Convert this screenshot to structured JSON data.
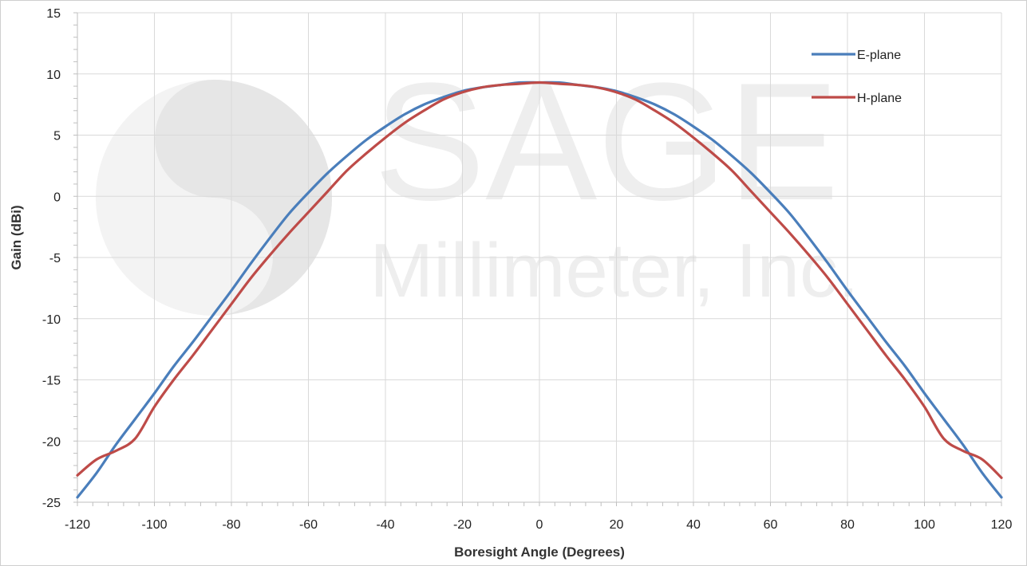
{
  "chart_data": {
    "type": "line",
    "title": "",
    "xlabel": "Boresight Angle (Degrees)",
    "ylabel": "Gain (dBi)",
    "xlim": [
      -120,
      120
    ],
    "ylim": [
      -25,
      15
    ],
    "xticks": [
      -120,
      -100,
      -80,
      -60,
      -40,
      -20,
      0,
      20,
      40,
      60,
      80,
      100,
      120
    ],
    "yticks": [
      -25,
      -20,
      -15,
      -10,
      -5,
      0,
      5,
      10,
      15
    ],
    "x_minor_step": 4,
    "y_minor_step": 1,
    "grid": true,
    "legend_position": "top-right",
    "watermark": {
      "line1": "SAGE",
      "line2": "Millimeter, Inc."
    },
    "x": [
      -120,
      -115,
      -110,
      -105,
      -100,
      -95,
      -90,
      -85,
      -80,
      -75,
      -70,
      -65,
      -60,
      -55,
      -50,
      -45,
      -40,
      -35,
      -30,
      -25,
      -20,
      -15,
      -10,
      -5,
      0,
      5,
      10,
      15,
      20,
      25,
      30,
      35,
      40,
      45,
      50,
      55,
      60,
      65,
      70,
      75,
      80,
      85,
      90,
      95,
      100,
      105,
      110,
      115,
      120
    ],
    "series": [
      {
        "name": "E-plane",
        "color": "#4a7ebb",
        "values": [
          -24.6,
          -22.6,
          -20.3,
          -18.2,
          -16.1,
          -13.9,
          -11.9,
          -9.8,
          -7.7,
          -5.5,
          -3.4,
          -1.4,
          0.3,
          1.9,
          3.3,
          4.6,
          5.7,
          6.7,
          7.5,
          8.1,
          8.6,
          8.9,
          9.1,
          9.3,
          9.3,
          9.3,
          9.1,
          8.9,
          8.6,
          8.1,
          7.5,
          6.7,
          5.7,
          4.6,
          3.3,
          1.9,
          0.3,
          -1.4,
          -3.4,
          -5.5,
          -7.7,
          -9.8,
          -11.9,
          -13.9,
          -16.1,
          -18.2,
          -20.3,
          -22.6,
          -24.6
        ]
      },
      {
        "name": "H-plane",
        "color": "#be4b48",
        "values": [
          -22.8,
          -21.5,
          -20.8,
          -19.8,
          -17.2,
          -15.0,
          -13.0,
          -10.9,
          -8.8,
          -6.7,
          -4.8,
          -3.0,
          -1.3,
          0.4,
          2.1,
          3.5,
          4.8,
          6.0,
          7.0,
          7.9,
          8.5,
          8.9,
          9.1,
          9.2,
          9.3,
          9.2,
          9.1,
          8.9,
          8.5,
          7.9,
          7.0,
          6.0,
          4.8,
          3.5,
          2.1,
          0.4,
          -1.3,
          -3.0,
          -4.8,
          -6.7,
          -8.8,
          -10.9,
          -13.0,
          -15.0,
          -17.2,
          -19.8,
          -20.8,
          -21.5,
          -23.0
        ]
      }
    ]
  }
}
